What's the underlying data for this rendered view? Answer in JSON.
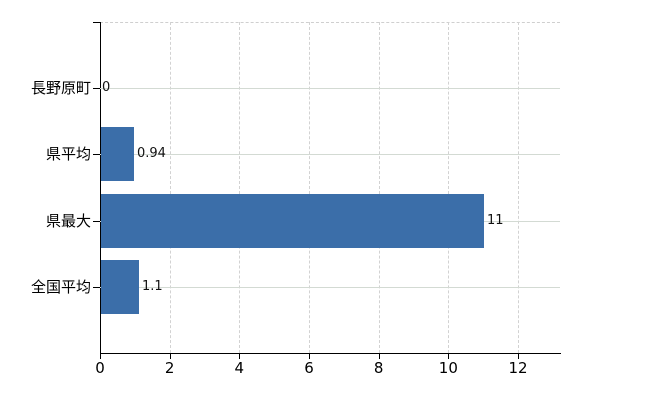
{
  "chart_data": {
    "type": "bar",
    "orientation": "horizontal",
    "title": "",
    "xlabel": "",
    "ylabel": "",
    "categories": [
      "長野原町",
      "県平均",
      "県最大",
      "全国平均"
    ],
    "values": [
      0,
      0.94,
      11,
      1.1
    ],
    "value_labels": [
      "0",
      "0.94",
      "11",
      "1.1"
    ],
    "x_ticks": [
      0,
      2,
      4,
      6,
      8,
      10,
      12
    ],
    "x_tick_labels": [
      "0",
      "2",
      "4",
      "6",
      "8",
      "10",
      "12"
    ],
    "xlim": [
      0,
      13.2
    ],
    "grid": true,
    "legend": false,
    "colors": {
      "bar": "#3b6ea9",
      "horizontal_gridline": "#d3dad3",
      "vertical_gridline": "#d2d2d2",
      "axis": "#000000",
      "text": "#000000",
      "background": "#ffffff"
    }
  }
}
